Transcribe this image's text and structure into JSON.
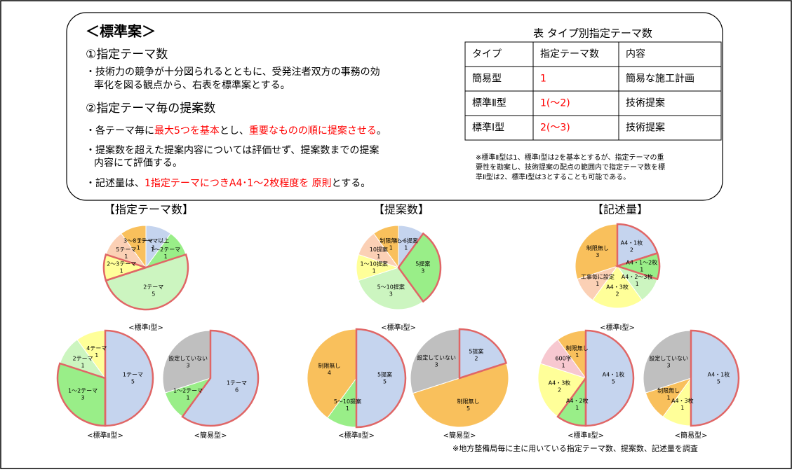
{
  "panel": {
    "title": "＜標準案＞",
    "sections": [
      {
        "heading": "①指定テーマ数",
        "lines": [
          [
            {
              "text": "・技術力の競争が十分図られるとともに、受発注者双方の事務の効"
            }
          ],
          [
            {
              "text": "率化を図る観点から、右表を標準案とする。"
            }
          ]
        ]
      },
      {
        "heading": "②指定テーマ毎の提案数",
        "lines": [
          [
            {
              "text": "・各テーマ毎に"
            },
            {
              "text": "最大5つを基本",
              "red": true
            },
            {
              "text": "とし、"
            },
            {
              "text": "重要なものの順に提案させる",
              "red": true
            },
            {
              "text": "。"
            }
          ],
          [
            {
              "text": "・提案数を超えた提案内容については評価せず、提案数までの提案"
            }
          ],
          [
            {
              "text": "内容にて評価する。"
            }
          ],
          [
            {
              "text": "・記述量は、"
            },
            {
              "text": "1指定テーマにつきA4･1～2枚程度を 原則",
              "red": true
            },
            {
              "text": "とする。"
            }
          ]
        ]
      }
    ]
  },
  "table": {
    "caption": "表 タイプ別指定テーマ数",
    "header": [
      "タイプ",
      "指定テーマ数",
      "内容"
    ],
    "rows": [
      [
        "簡易型",
        "1",
        "簡易な施工計画"
      ],
      [
        "標準Ⅱ型",
        "1(～2)",
        "技術提案"
      ],
      [
        "標準Ⅰ型",
        "2(～3)",
        "技術提案"
      ]
    ],
    "note": [
      "※標準Ⅱ型は1、標準Ⅰ型は2を基本とするが、指定テーマの重",
      "要性を勘案し、技術提案の配点の範囲内で指定テーマ数を標",
      "準Ⅱ型は2、標準Ⅰ型は3とすることも可能である。"
    ]
  },
  "chart_data": [
    {
      "type": "pie",
      "title": "【指定テーマ数】",
      "caption": "<標準Ⅰ型>",
      "categories": [
        "1テーマ以上",
        "1～2テーマ",
        "2テーマ",
        "2～3テーマ",
        "5テーマ",
        "3～8テーマ"
      ],
      "values": [
        1,
        1,
        5,
        1,
        1,
        1
      ],
      "colors": [
        "#c5d4ee",
        "#99ee88",
        "#ccf5c0",
        "#ffff99",
        "#fbd0b5",
        "#f9c05c"
      ],
      "highlight": [
        2,
        3
      ]
    },
    {
      "type": "pie",
      "title": "【提案数】",
      "caption": "<標準Ⅰ型>",
      "categories": [
        "4～6提案",
        "5提案",
        "5～10提案",
        "1～10提案",
        "10提案",
        "制限無し"
      ],
      "values": [
        1,
        3,
        3,
        1,
        1,
        1
      ],
      "colors": [
        "#c5d4ee",
        "#99ee88",
        "#ccf5c0",
        "#ffff99",
        "#fbd0b5",
        "#f9c05c"
      ],
      "highlight": [
        1
      ]
    },
    {
      "type": "pie",
      "title": "【記述量】",
      "caption": "<標準Ⅰ型>",
      "categories": [
        "A4・1枚",
        "A4・1～2枚",
        "A4・2～3枚",
        "A4・3枚",
        "工事毎に設定",
        "制限無し"
      ],
      "values": [
        2,
        1,
        1,
        2,
        1,
        3
      ],
      "colors": [
        "#c5d4ee",
        "#99ee88",
        "#ccf5c0",
        "#ffff99",
        "#fbd0b5",
        "#f9c05c"
      ],
      "highlight": [
        0,
        1
      ]
    },
    {
      "type": "pie",
      "caption": "<標準Ⅱ型>",
      "categories": [
        "1テーマ",
        "1～2テーマ",
        "2テーマ",
        "4テーマ"
      ],
      "values": [
        5,
        3,
        1,
        1
      ],
      "colors": [
        "#c5d4ee",
        "#99ee88",
        "#ccf5c0",
        "#ffff99"
      ],
      "highlight": [
        0,
        1
      ]
    },
    {
      "type": "pie",
      "caption": "<簡易型>",
      "categories": [
        "1テーマ",
        "1～2テーマ",
        "設定していない"
      ],
      "values": [
        6,
        1,
        3
      ],
      "colors": [
        "#c5d4ee",
        "#99ee88",
        "#bfbfbf"
      ],
      "highlight": [
        0
      ]
    },
    {
      "type": "pie",
      "caption": "<標準Ⅱ型>",
      "categories": [
        "5提案",
        "5～10提案",
        "制限無し"
      ],
      "values": [
        5,
        1,
        4
      ],
      "colors": [
        "#c5d4ee",
        "#99ee88",
        "#f9c05c"
      ],
      "highlight": [
        0
      ]
    },
    {
      "type": "pie",
      "caption": "<簡易型>",
      "categories": [
        "5提案",
        "制限無し",
        "設定していない"
      ],
      "values": [
        2,
        5,
        3
      ],
      "colors": [
        "#c5d4ee",
        "#f9c05c",
        "#bfbfbf"
      ],
      "highlight": [
        0
      ]
    },
    {
      "type": "pie",
      "caption": "<標準Ⅱ型>",
      "categories": [
        "A4・1枚",
        "A4・2枚",
        "A4・3枚",
        "600字",
        "制限無し"
      ],
      "values": [
        5,
        1,
        2,
        1,
        1
      ],
      "colors": [
        "#c5d4ee",
        "#99ee88",
        "#ffff99",
        "#f7c8d0",
        "#f9c05c"
      ],
      "highlight": [
        0,
        1
      ]
    },
    {
      "type": "pie",
      "caption": "<簡易型>",
      "categories": [
        "A4・1枚",
        "A4・3枚",
        "制限無し",
        "設定していない"
      ],
      "values": [
        5,
        1,
        1,
        3
      ],
      "colors": [
        "#c5d4ee",
        "#ffff99",
        "#f9c05c",
        "#bfbfbf"
      ],
      "highlight": [
        0
      ]
    }
  ],
  "footnote": "※地方整備局毎に主に用いている指定テーマ数、提案数、記述量を調査"
}
